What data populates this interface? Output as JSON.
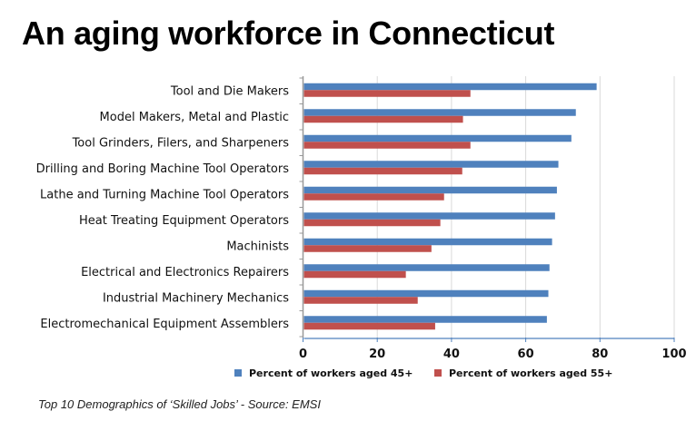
{
  "chart_data": {
    "type": "bar",
    "orientation": "horizontal",
    "title": "An aging workforce in Connecticut",
    "caption": "Top 10 Demographics of ‘Skilled Jobs’ - Source:  EMSI",
    "categories": [
      "Tool and Die Makers",
      "Model Makers, Metal and Plastic",
      "Tool Grinders, Filers, and Sharpeners",
      "Drilling and Boring Machine Tool Operators",
      "Lathe and Turning Machine Tool Operators",
      "Heat Treating Equipment  Operators",
      "Machinists",
      "Electrical and Electronics Repairers",
      "Industrial Machinery Mechanics",
      "Electromechanical Equipment Assemblers"
    ],
    "series": [
      {
        "name": "Percent of workers aged 45+",
        "color": "#4F81BD",
        "values": [
          79.1,
          73.5,
          72.3,
          68.8,
          68.4,
          67.9,
          67.1,
          66.4,
          66.1,
          65.7
        ]
      },
      {
        "name": "Percent of workers aged 55+",
        "color": "#C0504D",
        "values": [
          45.1,
          43.1,
          45.1,
          42.9,
          38.0,
          37.0,
          34.6,
          27.7,
          30.9,
          35.6
        ]
      }
    ],
    "xlim": [
      0,
      100
    ],
    "xticks": [
      "0",
      "20",
      "40",
      "60",
      "80",
      "100"
    ],
    "grid": true,
    "legend": "bottom"
  }
}
